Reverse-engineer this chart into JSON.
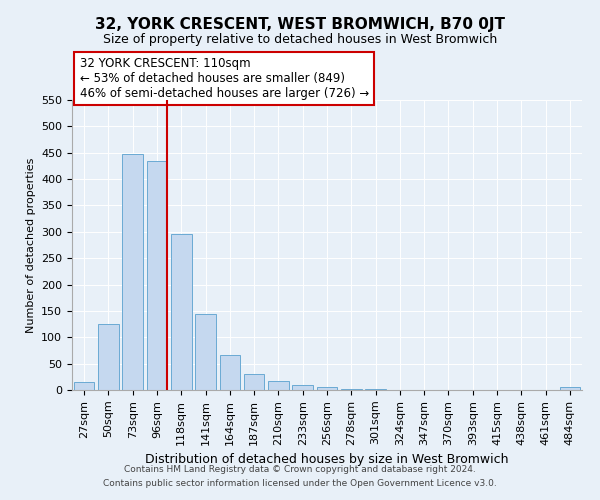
{
  "title": "32, YORK CRESCENT, WEST BROMWICH, B70 0JT",
  "subtitle": "Size of property relative to detached houses in West Bromwich",
  "xlabel": "Distribution of detached houses by size in West Bromwich",
  "ylabel": "Number of detached properties",
  "bar_labels": [
    "27sqm",
    "50sqm",
    "73sqm",
    "96sqm",
    "118sqm",
    "141sqm",
    "164sqm",
    "187sqm",
    "210sqm",
    "233sqm",
    "256sqm",
    "278sqm",
    "301sqm",
    "324sqm",
    "347sqm",
    "370sqm",
    "393sqm",
    "415sqm",
    "438sqm",
    "461sqm",
    "484sqm"
  ],
  "bar_values": [
    15,
    125,
    448,
    435,
    296,
    145,
    67,
    30,
    17,
    9,
    6,
    1,
    1,
    0,
    0,
    0,
    0,
    0,
    0,
    0,
    5
  ],
  "bar_color": "#c5d8ef",
  "bar_edge_color": "#6aaad4",
  "vline_color": "#cc0000",
  "annotation_text": "32 YORK CRESCENT: 110sqm\n← 53% of detached houses are smaller (849)\n46% of semi-detached houses are larger (726) →",
  "annotation_box_color": "white",
  "annotation_box_edge": "#cc0000",
  "ylim": [
    0,
    550
  ],
  "yticks": [
    0,
    50,
    100,
    150,
    200,
    250,
    300,
    350,
    400,
    450,
    500,
    550
  ],
  "footer_line1": "Contains HM Land Registry data © Crown copyright and database right 2024.",
  "footer_line2": "Contains public sector information licensed under the Open Government Licence v3.0.",
  "background_color": "#e8f0f8",
  "plot_background": "#e8f0f8",
  "title_fontsize": 11,
  "subtitle_fontsize": 9,
  "ylabel_fontsize": 8,
  "xlabel_fontsize": 9,
  "tick_fontsize": 8,
  "annotation_fontsize": 8.5,
  "footer_fontsize": 6.5
}
